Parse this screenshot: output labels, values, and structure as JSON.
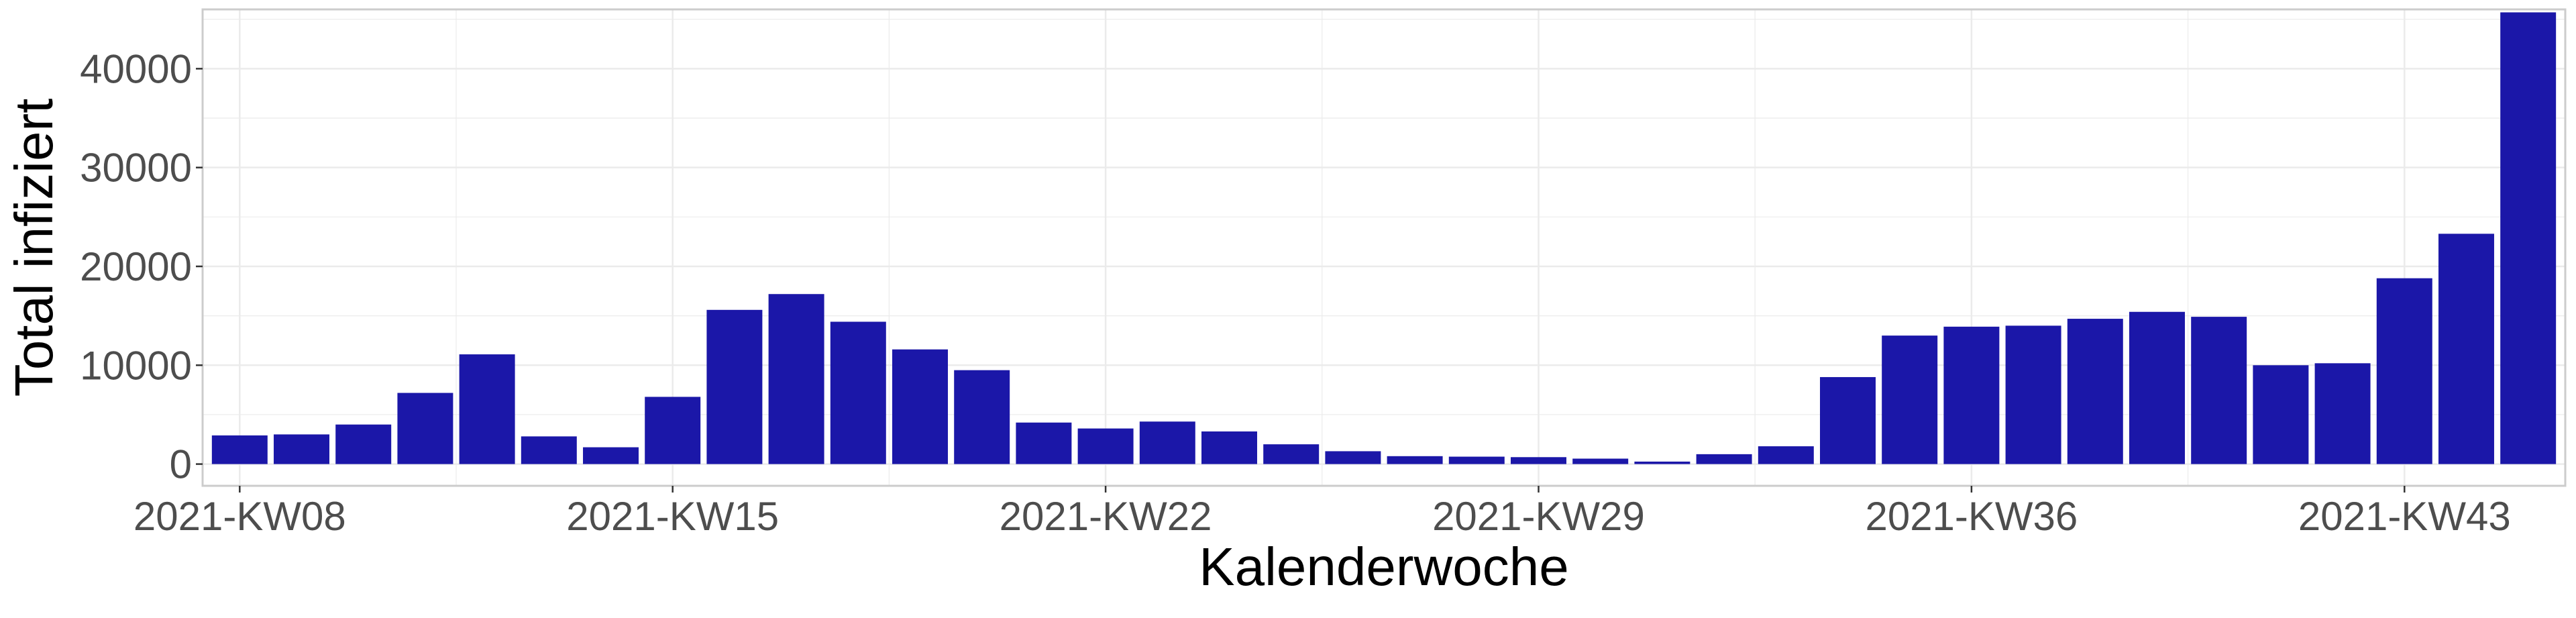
{
  "chart_data": {
    "type": "bar",
    "xlabel": "Kalenderwoche",
    "ylabel": "Total infiziert",
    "categories": [
      "2021-KW08",
      "2021-KW09",
      "2021-KW10",
      "2021-KW11",
      "2021-KW12",
      "2021-KW13",
      "2021-KW14",
      "2021-KW15",
      "2021-KW16",
      "2021-KW17",
      "2021-KW18",
      "2021-KW19",
      "2021-KW20",
      "2021-KW21",
      "2021-KW22",
      "2021-KW23",
      "2021-KW24",
      "2021-KW25",
      "2021-KW26",
      "2021-KW27",
      "2021-KW28",
      "2021-KW29",
      "2021-KW30",
      "2021-KW31",
      "2021-KW32",
      "2021-KW33",
      "2021-KW34",
      "2021-KW35",
      "2021-KW36",
      "2021-KW37",
      "2021-KW38",
      "2021-KW39",
      "2021-KW40",
      "2021-KW41",
      "2021-KW42",
      "2021-KW43",
      "2021-KW44",
      "2021-KW45"
    ],
    "values": [
      2900,
      3000,
      4000,
      7200,
      11100,
      2800,
      1700,
      6800,
      15600,
      17200,
      14400,
      11600,
      9500,
      4200,
      3600,
      4300,
      3300,
      2000,
      1300,
      800,
      750,
      700,
      550,
      250,
      1000,
      1800,
      8800,
      13000,
      13900,
      14000,
      14700,
      15400,
      14900,
      10000,
      10200,
      18800,
      23300,
      45700
    ],
    "ylim": [
      -2200,
      46000
    ],
    "yticks": [
      0,
      10000,
      20000,
      30000,
      40000
    ],
    "yticklabels": [
      "0",
      "10000",
      "20000",
      "30000",
      "40000"
    ],
    "xtick_categories": [
      "2021-KW08",
      "2021-KW15",
      "2021-KW22",
      "2021-KW29",
      "2021-KW36",
      "2021-KW43"
    ],
    "grid": true,
    "bar_color": "#1b17a8",
    "grid_color": "#ebebeb",
    "panel_border_color": "#cccccc"
  }
}
